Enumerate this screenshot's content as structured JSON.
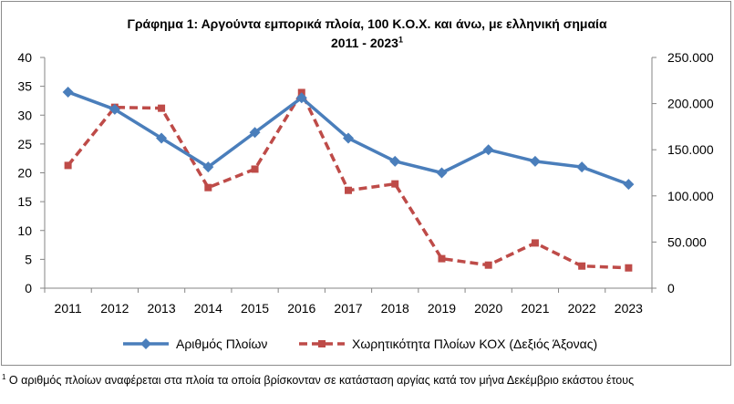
{
  "chart_data": {
    "type": "line",
    "title_line1": "Γράφημα 1: Αργούντα  εμπορικά πλοία, 100 Κ.Ο.Χ. και άνω, με ελληνική σημαία",
    "title_line2": "2011 - 2023",
    "title_sup": "1",
    "categories": [
      "2011",
      "2012",
      "2013",
      "2014",
      "2015",
      "2016",
      "2017",
      "2018",
      "2019",
      "2020",
      "2021",
      "2022",
      "2023"
    ],
    "y_left": {
      "min": 0,
      "max": 40,
      "step": 5,
      "ticks": [
        "0",
        "5",
        "10",
        "15",
        "20",
        "25",
        "30",
        "35",
        "40"
      ]
    },
    "y_right": {
      "min": 0,
      "max": 250000,
      "step": 50000,
      "ticks": [
        "0",
        "50.000",
        "100.000",
        "150.000",
        "200.000",
        "250.000"
      ]
    },
    "grid": false,
    "legend_position": "bottom",
    "series": [
      {
        "name": "Αριθμός  Πλοίων",
        "axis": "left",
        "color": "#4a7ebb",
        "line_style": "solid",
        "marker": "diamond",
        "values": [
          34,
          31,
          26,
          21,
          27,
          33,
          26,
          22,
          20,
          24,
          22,
          21,
          18
        ]
      },
      {
        "name": "Χωρητικότητα Πλοίων ΚΟΧ (Δεξιός Άξονας)",
        "axis": "right",
        "color": "#be4b48",
        "line_style": "dashed",
        "marker": "square",
        "values": [
          133000,
          196000,
          195000,
          109000,
          129000,
          212000,
          106000,
          113000,
          32000,
          25000,
          49000,
          24000,
          22000
        ]
      }
    ]
  },
  "footnote": {
    "sup": "1",
    "text": " Ο αριθμός πλοίων αναφέρεται στα πλοία τα οποία βρίσκονταν σε κατάσταση αργίας κατά τον μήνα Δεκέμβριο εκάστου έτους"
  }
}
